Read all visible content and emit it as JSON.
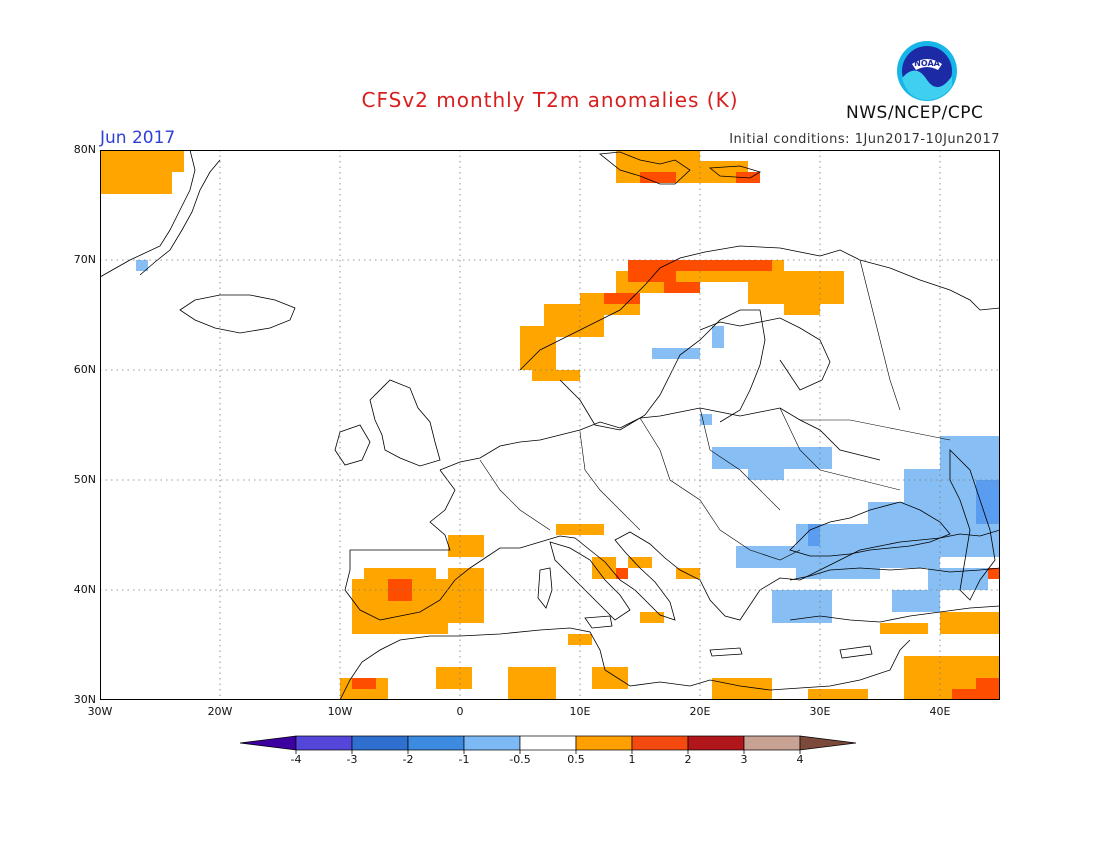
{
  "header": {
    "title": "CFSv2 monthly T2m anomalies (K)",
    "month": "Jun 2017",
    "initial_conditions": "Initial conditions: 1Jun2017-10Jun2017",
    "agency": "NWS/NCEP/CPC",
    "logo_text": "NOAA"
  },
  "map": {
    "lon_range": [
      -30,
      45
    ],
    "lat_range": [
      30,
      80
    ],
    "lon_ticks": [
      "30W",
      "20W",
      "10W",
      "0",
      "10E",
      "20E",
      "30E",
      "40E"
    ],
    "lat_ticks": [
      "80N",
      "70N",
      "60N",
      "50N",
      "40N",
      "30N"
    ],
    "grid": "dotted",
    "regions": [
      {
        "name": "greenland",
        "class": "warm1",
        "cells": [
          [
            -30,
            76,
            6,
            4
          ],
          [
            -25,
            78,
            2,
            2
          ]
        ]
      },
      {
        "name": "svalbard",
        "class": "warm1",
        "cells": [
          [
            13,
            77,
            7,
            3
          ],
          [
            20,
            77,
            4,
            2
          ]
        ]
      },
      {
        "name": "svalbard-hot",
        "class": "warm2",
        "cells": [
          [
            15,
            77,
            3,
            1
          ],
          [
            23,
            77,
            2,
            1
          ]
        ]
      },
      {
        "name": "norway-coast",
        "class": "warm1",
        "cells": [
          [
            5,
            60,
            3,
            4
          ],
          [
            7,
            63,
            5,
            3
          ],
          [
            10,
            65,
            5,
            2
          ],
          [
            13,
            67,
            5,
            2
          ],
          [
            17,
            68,
            10,
            2
          ],
          [
            24,
            66,
            8,
            3
          ],
          [
            30,
            67,
            2,
            2
          ],
          [
            27,
            65,
            3,
            2
          ],
          [
            6,
            59,
            4,
            1
          ]
        ]
      },
      {
        "name": "norway-hot",
        "class": "warm2",
        "cells": [
          [
            14,
            68,
            4,
            2
          ],
          [
            18,
            69,
            5,
            1
          ],
          [
            22,
            69,
            4,
            1
          ],
          [
            17,
            67,
            3,
            1
          ],
          [
            12,
            66,
            3,
            1
          ]
        ]
      },
      {
        "name": "iberia",
        "class": "warm1",
        "cells": [
          [
            -9,
            36,
            8,
            5
          ],
          [
            -4,
            37,
            6,
            4
          ],
          [
            -1,
            40,
            3,
            2
          ],
          [
            -8,
            41,
            6,
            1
          ],
          [
            -5,
            36,
            2,
            1
          ]
        ]
      },
      {
        "name": "iberia-hot",
        "class": "warm2",
        "cells": [
          [
            -6,
            39,
            2,
            2
          ]
        ]
      },
      {
        "name": "france-sw",
        "class": "warm1",
        "cells": [
          [
            -1,
            43,
            3,
            2
          ],
          [
            0,
            44,
            2,
            1
          ]
        ]
      },
      {
        "name": "n-africa",
        "class": "warm1",
        "cells": [
          [
            -10,
            30,
            4,
            2
          ],
          [
            -2,
            31,
            3,
            2
          ],
          [
            4,
            30,
            4,
            3
          ],
          [
            11,
            31,
            3,
            2
          ],
          [
            21,
            30,
            5,
            2
          ],
          [
            29,
            30,
            5,
            1
          ],
          [
            37,
            30,
            8,
            4
          ],
          [
            40,
            36,
            5,
            2
          ],
          [
            35,
            36,
            4,
            1
          ]
        ]
      },
      {
        "name": "n-africa-hot",
        "class": "warm2",
        "cells": [
          [
            -9,
            31,
            2,
            1
          ],
          [
            41,
            30,
            2,
            1
          ],
          [
            43,
            30,
            2,
            2
          ]
        ]
      },
      {
        "name": "balkans",
        "class": "warm1",
        "cells": [
          [
            11,
            41,
            2,
            2
          ],
          [
            14,
            42,
            2,
            1
          ],
          [
            18,
            41,
            2,
            1
          ],
          [
            8,
            45,
            4,
            1
          ],
          [
            15,
            37,
            2,
            1
          ],
          [
            9,
            35,
            2,
            1
          ]
        ]
      },
      {
        "name": "balkans-hot",
        "class": "warm2",
        "cells": [
          [
            13,
            41,
            1,
            1
          ],
          [
            44,
            41,
            1,
            1
          ]
        ]
      },
      {
        "name": "scandinavia-cool",
        "class": "cool1",
        "cells": [
          [
            16,
            61,
            4,
            1
          ],
          [
            21,
            62,
            1,
            2
          ],
          [
            20,
            55,
            1,
            1
          ]
        ]
      },
      {
        "name": "east-europe-cool",
        "class": "cool1",
        "cells": [
          [
            21,
            51,
            10,
            2
          ],
          [
            24,
            50,
            3,
            1
          ]
        ]
      },
      {
        "name": "black-sea-cool",
        "class": "cool1",
        "cells": [
          [
            28,
            41,
            7,
            5
          ],
          [
            34,
            42,
            6,
            6
          ],
          [
            40,
            43,
            5,
            11
          ],
          [
            39,
            40,
            5,
            2
          ],
          [
            23,
            42,
            6,
            2
          ],
          [
            26,
            37,
            5,
            3
          ],
          [
            36,
            38,
            4,
            2
          ],
          [
            37,
            45,
            4,
            6
          ]
        ]
      },
      {
        "name": "black-sea-cool2",
        "class": "cool2",
        "cells": [
          [
            43,
            46,
            2,
            4
          ],
          [
            29,
            44,
            1,
            2
          ]
        ]
      },
      {
        "name": "greenland-cool",
        "class": "cool1",
        "cells": [
          [
            -27,
            69,
            1,
            1
          ]
        ]
      }
    ]
  },
  "colorbar": {
    "labels": [
      "-4",
      "-3",
      "-2",
      "-1",
      "-0.5",
      "0.5",
      "1",
      "2",
      "3",
      "4"
    ],
    "colors": [
      "#3c00a0",
      "#5446d8",
      "#2f6fd0",
      "#3d8be0",
      "#7dbaf5",
      "#ffffff",
      "#ff9f00",
      "#f44a10",
      "#b0161a",
      "#c8a293",
      "#7b4a3a"
    ]
  },
  "colors": {
    "title": "#d81e1e",
    "month": "#2f3fd8",
    "warm1": "#ffa500",
    "warm2": "#ff4d00",
    "warm3": "#b51a1a",
    "cool1": "#87bff5",
    "cool2": "#5a9df0"
  }
}
